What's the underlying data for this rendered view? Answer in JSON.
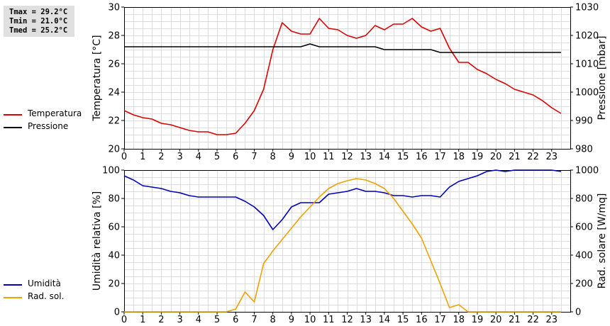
{
  "stats": {
    "tmax": "Tmax = 29.2°C",
    "tmin": "Tmin = 21.0°C",
    "tmed": "Tmed = 25.2°C"
  },
  "chart_data": [
    {
      "type": "line",
      "x_ticks": [
        0,
        1,
        2,
        3,
        4,
        5,
        6,
        7,
        8,
        9,
        10,
        11,
        12,
        13,
        14,
        15,
        16,
        17,
        18,
        19,
        20,
        21,
        22,
        23
      ],
      "xlim": [
        0,
        24
      ],
      "ylabel": "Temperatura [°C]",
      "ylim": [
        20,
        30
      ],
      "y_ticks": [
        20,
        22,
        24,
        26,
        28,
        30
      ],
      "y2label": "Pressione [mbar]",
      "y2lim": [
        980,
        1030
      ],
      "y2_ticks": [
        980,
        990,
        1000,
        1010,
        1020,
        1030
      ],
      "grid": true,
      "legend_placement": "left",
      "series": [
        {
          "name": "Temperatura",
          "axis": "left",
          "color": "#dd0000",
          "x": [
            0,
            0.5,
            1,
            1.5,
            2,
            2.5,
            3,
            3.5,
            4,
            4.5,
            5,
            5.5,
            6,
            6.5,
            7,
            7.5,
            8,
            8.5,
            9,
            9.5,
            10,
            10.5,
            11,
            11.5,
            12,
            12.5,
            13,
            13.5,
            14,
            14.5,
            15,
            15.5,
            16,
            16.5,
            17,
            17.5,
            18,
            18.5,
            19,
            19.5,
            20,
            20.5,
            21,
            21.5,
            22,
            22.5,
            23,
            23.5
          ],
          "values": [
            22.7,
            22.4,
            22.2,
            22.1,
            21.8,
            21.7,
            21.5,
            21.3,
            21.2,
            21.2,
            21.0,
            21.0,
            21.1,
            21.8,
            22.7,
            24.2,
            27.0,
            28.9,
            28.3,
            28.1,
            28.1,
            29.2,
            28.5,
            28.4,
            28.0,
            27.8,
            28.0,
            28.7,
            28.4,
            28.8,
            28.8,
            29.2,
            28.6,
            28.3,
            28.5,
            27.1,
            26.1,
            26.1,
            25.6,
            25.3,
            24.9,
            24.6,
            24.2,
            24.0,
            23.8,
            23.4,
            22.9,
            22.5
          ]
        },
        {
          "name": "Pressione",
          "axis": "right",
          "color": "#000000",
          "x": [
            0,
            9.5,
            10,
            10.5,
            13.5,
            14,
            16.5,
            17,
            23.5
          ],
          "values": [
            1016,
            1016,
            1017,
            1016,
            1016,
            1015,
            1015,
            1014,
            1014
          ]
        }
      ]
    },
    {
      "type": "line",
      "x_ticks": [
        0,
        1,
        2,
        3,
        4,
        5,
        6,
        7,
        8,
        9,
        10,
        11,
        12,
        13,
        14,
        15,
        16,
        17,
        18,
        19,
        20,
        21,
        22,
        23
      ],
      "xlim": [
        0,
        24
      ],
      "ylabel": "Umidità relativa [%]",
      "ylim": [
        0,
        100
      ],
      "y_ticks": [
        0,
        20,
        40,
        60,
        80,
        100
      ],
      "y2label": "Rad. solare [W/mq]",
      "y2lim": [
        0,
        1000
      ],
      "y2_ticks": [
        0,
        200,
        400,
        600,
        800,
        1000
      ],
      "grid": true,
      "legend_placement": "left",
      "series": [
        {
          "name": "Umidità",
          "axis": "left",
          "color": "#0000bb",
          "x": [
            0,
            0.5,
            1,
            1.5,
            2,
            2.5,
            3,
            3.5,
            4,
            4.5,
            5,
            5.5,
            6,
            6.5,
            7,
            7.5,
            8,
            8.5,
            9,
            9.5,
            10,
            10.5,
            11,
            11.5,
            12,
            12.5,
            13,
            13.5,
            14,
            14.5,
            15,
            15.5,
            16,
            16.5,
            17,
            17.5,
            18,
            18.5,
            19,
            19.5,
            20,
            20.5,
            21,
            21.5,
            22,
            22.5,
            23,
            23.5
          ],
          "values": [
            96,
            93,
            89,
            88,
            87,
            85,
            84,
            82,
            81,
            81,
            81,
            81,
            81,
            78,
            74,
            68,
            58,
            65,
            74,
            77,
            77,
            77,
            83,
            84,
            85,
            87,
            85,
            85,
            84,
            82,
            82,
            81,
            82,
            82,
            81,
            88,
            92,
            94,
            96,
            99,
            100,
            99,
            100,
            100,
            100,
            100,
            100,
            99
          ]
        },
        {
          "name": "Rad. sol.",
          "axis": "right",
          "color": "#f0a000",
          "x": [
            0,
            0.5,
            1,
            1.5,
            2,
            2.5,
            3,
            3.5,
            4,
            4.5,
            5,
            5.5,
            6,
            6.5,
            7,
            7.5,
            8,
            8.5,
            9,
            9.5,
            10,
            10.5,
            11,
            11.5,
            12,
            12.5,
            13,
            13.5,
            14,
            14.5,
            15,
            15.5,
            16,
            16.5,
            17,
            17.5,
            18,
            18.5,
            19,
            19.5,
            20,
            20.5,
            21,
            21.5,
            22,
            22.5,
            23,
            23.5
          ],
          "values": [
            0,
            0,
            0,
            0,
            0,
            0,
            0,
            0,
            0,
            0,
            0,
            0,
            20,
            140,
            70,
            340,
            430,
            510,
            590,
            670,
            740,
            810,
            870,
            905,
            925,
            940,
            930,
            905,
            870,
            800,
            710,
            620,
            520,
            360,
            200,
            30,
            50,
            0,
            0,
            0,
            0,
            0,
            0,
            0,
            0,
            0,
            0,
            0
          ]
        }
      ]
    }
  ]
}
